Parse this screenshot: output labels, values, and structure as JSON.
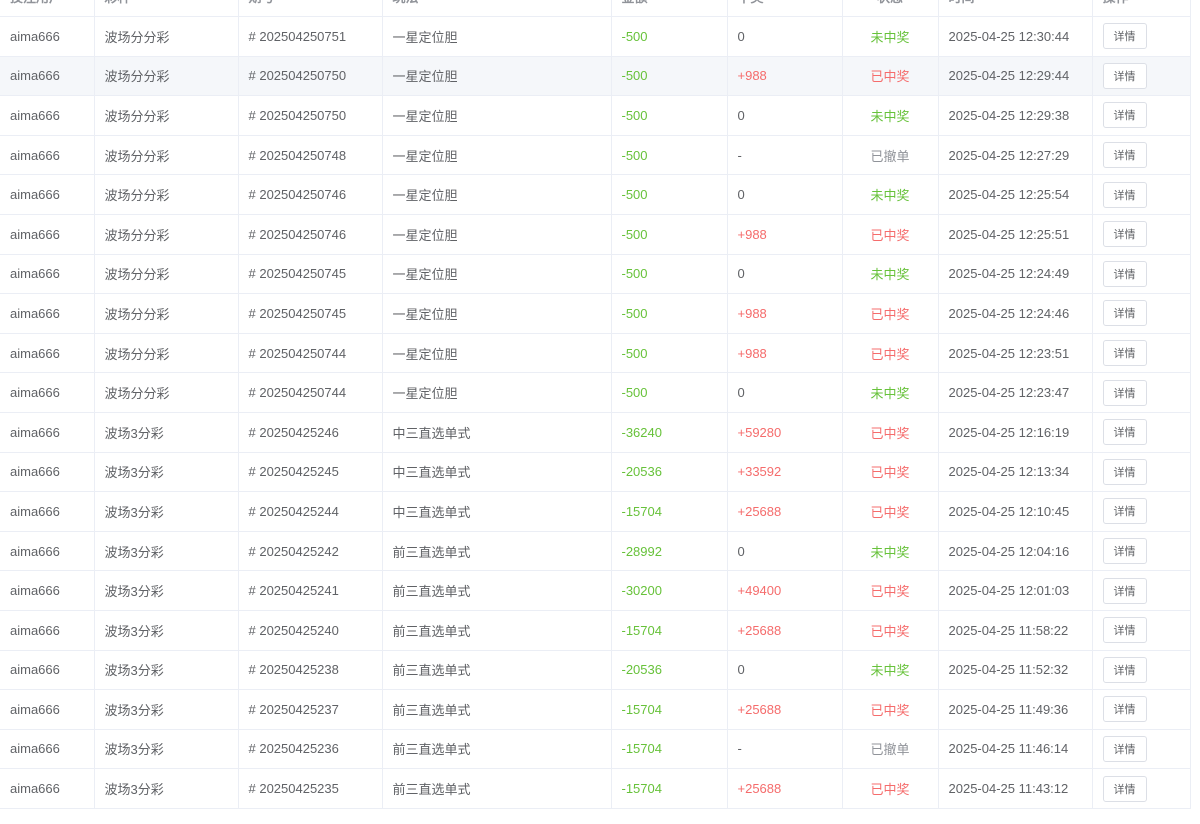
{
  "columns": [
    "投注用户",
    "彩种",
    "期号",
    "玩法",
    "金额",
    "中奖",
    "状态",
    "时间",
    "操作"
  ],
  "detail_label": "详情",
  "colors": {
    "loss": "#67c23a",
    "win": "#f56c6c",
    "not_won": "#67c23a",
    "won": "#f56c6c",
    "cancelled": "#909399"
  },
  "rows": [
    {
      "user": "aima666",
      "lottery": "波场分分彩",
      "issue": "# 202504250751",
      "play": "一星定位胆",
      "amount": "-500",
      "prize": "0",
      "status": "未中奖",
      "time": "2025-04-25 12:30:44"
    },
    {
      "user": "aima666",
      "lottery": "波场分分彩",
      "issue": "# 202504250750",
      "play": "一星定位胆",
      "amount": "-500",
      "prize": "+988",
      "status": "已中奖",
      "time": "2025-04-25 12:29:44"
    },
    {
      "user": "aima666",
      "lottery": "波场分分彩",
      "issue": "# 202504250750",
      "play": "一星定位胆",
      "amount": "-500",
      "prize": "0",
      "status": "未中奖",
      "time": "2025-04-25 12:29:38"
    },
    {
      "user": "aima666",
      "lottery": "波场分分彩",
      "issue": "# 202504250748",
      "play": "一星定位胆",
      "amount": "-500",
      "prize": "-",
      "status": "已撤单",
      "time": "2025-04-25 12:27:29"
    },
    {
      "user": "aima666",
      "lottery": "波场分分彩",
      "issue": "# 202504250746",
      "play": "一星定位胆",
      "amount": "-500",
      "prize": "0",
      "status": "未中奖",
      "time": "2025-04-25 12:25:54"
    },
    {
      "user": "aima666",
      "lottery": "波场分分彩",
      "issue": "# 202504250746",
      "play": "一星定位胆",
      "amount": "-500",
      "prize": "+988",
      "status": "已中奖",
      "time": "2025-04-25 12:25:51"
    },
    {
      "user": "aima666",
      "lottery": "波场分分彩",
      "issue": "# 202504250745",
      "play": "一星定位胆",
      "amount": "-500",
      "prize": "0",
      "status": "未中奖",
      "time": "2025-04-25 12:24:49"
    },
    {
      "user": "aima666",
      "lottery": "波场分分彩",
      "issue": "# 202504250745",
      "play": "一星定位胆",
      "amount": "-500",
      "prize": "+988",
      "status": "已中奖",
      "time": "2025-04-25 12:24:46"
    },
    {
      "user": "aima666",
      "lottery": "波场分分彩",
      "issue": "# 202504250744",
      "play": "一星定位胆",
      "amount": "-500",
      "prize": "+988",
      "status": "已中奖",
      "time": "2025-04-25 12:23:51"
    },
    {
      "user": "aima666",
      "lottery": "波场分分彩",
      "issue": "# 202504250744",
      "play": "一星定位胆",
      "amount": "-500",
      "prize": "0",
      "status": "未中奖",
      "time": "2025-04-25 12:23:47"
    },
    {
      "user": "aima666",
      "lottery": "波场3分彩",
      "issue": "# 20250425246",
      "play": "中三直选单式",
      "amount": "-36240",
      "prize": "+59280",
      "status": "已中奖",
      "time": "2025-04-25 12:16:19"
    },
    {
      "user": "aima666",
      "lottery": "波场3分彩",
      "issue": "# 20250425245",
      "play": "中三直选单式",
      "amount": "-20536",
      "prize": "+33592",
      "status": "已中奖",
      "time": "2025-04-25 12:13:34"
    },
    {
      "user": "aima666",
      "lottery": "波场3分彩",
      "issue": "# 20250425244",
      "play": "中三直选单式",
      "amount": "-15704",
      "prize": "+25688",
      "status": "已中奖",
      "time": "2025-04-25 12:10:45"
    },
    {
      "user": "aima666",
      "lottery": "波场3分彩",
      "issue": "# 20250425242",
      "play": "前三直选单式",
      "amount": "-28992",
      "prize": "0",
      "status": "未中奖",
      "time": "2025-04-25 12:04:16"
    },
    {
      "user": "aima666",
      "lottery": "波场3分彩",
      "issue": "# 20250425241",
      "play": "前三直选单式",
      "amount": "-30200",
      "prize": "+49400",
      "status": "已中奖",
      "time": "2025-04-25 12:01:03"
    },
    {
      "user": "aima666",
      "lottery": "波场3分彩",
      "issue": "# 20250425240",
      "play": "前三直选单式",
      "amount": "-15704",
      "prize": "+25688",
      "status": "已中奖",
      "time": "2025-04-25 11:58:22"
    },
    {
      "user": "aima666",
      "lottery": "波场3分彩",
      "issue": "# 20250425238",
      "play": "前三直选单式",
      "amount": "-20536",
      "prize": "0",
      "status": "未中奖",
      "time": "2025-04-25 11:52:32"
    },
    {
      "user": "aima666",
      "lottery": "波场3分彩",
      "issue": "# 20250425237",
      "play": "前三直选单式",
      "amount": "-15704",
      "prize": "+25688",
      "status": "已中奖",
      "time": "2025-04-25 11:49:36"
    },
    {
      "user": "aima666",
      "lottery": "波场3分彩",
      "issue": "# 20250425236",
      "play": "前三直选单式",
      "amount": "-15704",
      "prize": "-",
      "status": "已撤单",
      "time": "2025-04-25 11:46:14"
    },
    {
      "user": "aima666",
      "lottery": "波场3分彩",
      "issue": "# 20250425235",
      "play": "前三直选单式",
      "amount": "-15704",
      "prize": "+25688",
      "status": "已中奖",
      "time": "2025-04-25 11:43:12"
    }
  ]
}
